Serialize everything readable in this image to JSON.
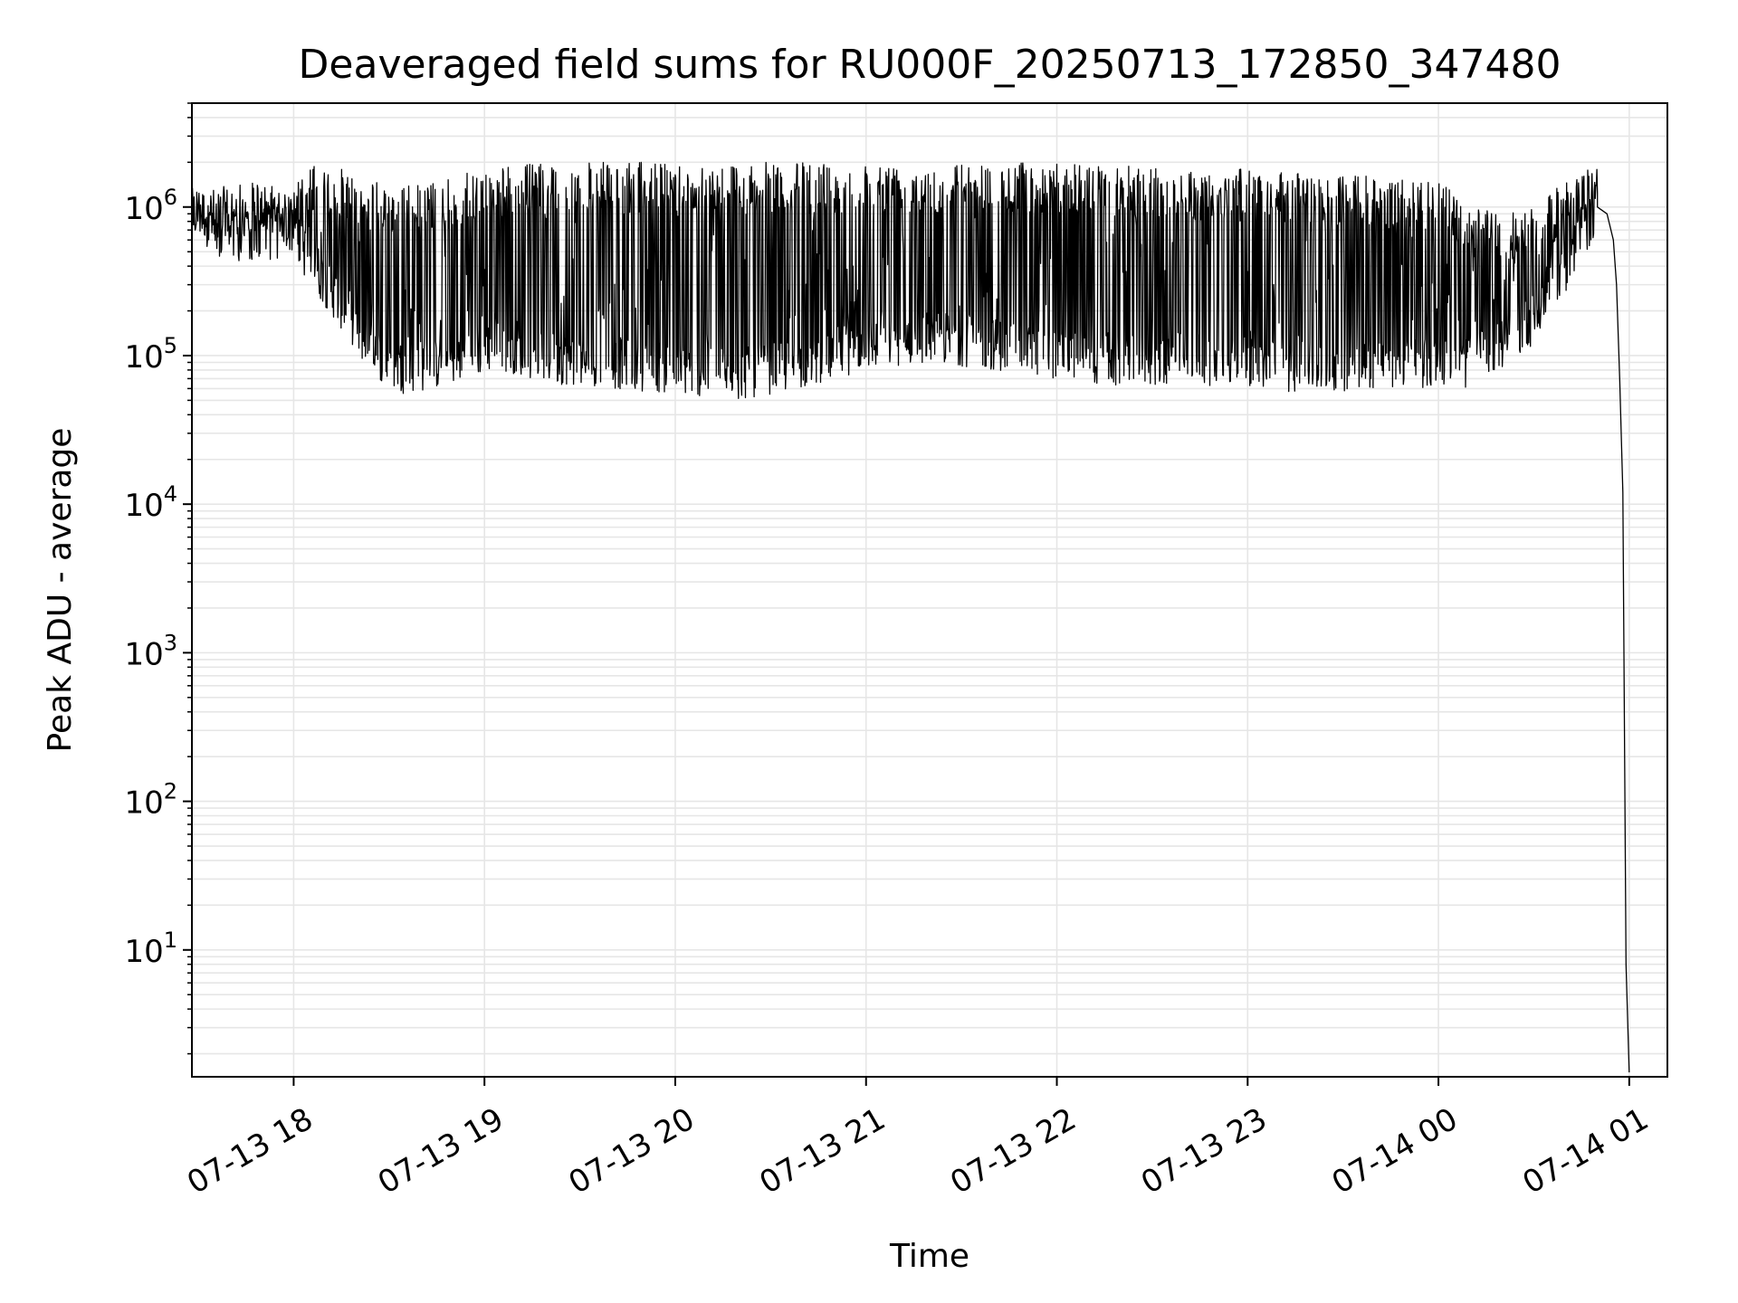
{
  "chart_data": {
    "type": "line",
    "title": "Deaveraged field sums for RU000F_20250713_172850_347480",
    "xlabel": "Time",
    "ylabel": "Peak ADU - average",
    "yscale": "log",
    "grid": true,
    "legend": "none",
    "line_color": "#000000",
    "grid_color": "#e6e6e6",
    "xlim": [
      "2025-07-13T17:28",
      "2025-07-14T01:12"
    ],
    "ylim": [
      1.4,
      5000000
    ],
    "x_ticks": [
      {
        "value": "2025-07-13T18:00",
        "label": "07-13 18"
      },
      {
        "value": "2025-07-13T19:00",
        "label": "07-13 19"
      },
      {
        "value": "2025-07-13T20:00",
        "label": "07-13 20"
      },
      {
        "value": "2025-07-13T21:00",
        "label": "07-13 21"
      },
      {
        "value": "2025-07-13T22:00",
        "label": "07-13 22"
      },
      {
        "value": "2025-07-13T23:00",
        "label": "07-13 23"
      },
      {
        "value": "2025-07-14T00:00",
        "label": "07-14 00"
      },
      {
        "value": "2025-07-14T01:00",
        "label": "07-14 01"
      }
    ],
    "y_ticks": [
      {
        "value": 10,
        "base": "10",
        "exp": "1"
      },
      {
        "value": 100,
        "base": "10",
        "exp": "2"
      },
      {
        "value": 1000,
        "base": "10",
        "exp": "3"
      },
      {
        "value": 10000,
        "base": "10",
        "exp": "4"
      },
      {
        "value": 100000,
        "base": "10",
        "exp": "5"
      },
      {
        "value": 1000000,
        "base": "10",
        "exp": "6"
      }
    ],
    "series": [
      {
        "envelope": {
          "x": [
            "2025-07-13T17:28",
            "2025-07-13T17:35",
            "2025-07-13T17:45",
            "2025-07-13T17:55",
            "2025-07-13T18:05",
            "2025-07-13T18:15",
            "2025-07-13T18:25",
            "2025-07-13T18:35",
            "2025-07-13T18:45",
            "2025-07-13T18:55",
            "2025-07-13T19:05",
            "2025-07-13T19:20",
            "2025-07-13T19:40",
            "2025-07-13T20:00",
            "2025-07-13T20:20",
            "2025-07-13T20:40",
            "2025-07-13T21:00",
            "2025-07-13T21:20",
            "2025-07-13T21:40",
            "2025-07-13T22:00",
            "2025-07-13T22:20",
            "2025-07-13T22:40",
            "2025-07-13T23:00",
            "2025-07-13T23:20",
            "2025-07-13T23:40",
            "2025-07-14T00:00",
            "2025-07-14T00:10",
            "2025-07-14T00:20",
            "2025-07-14T00:30",
            "2025-07-14T00:40",
            "2025-07-14T00:50"
          ],
          "lower": [
            600000,
            600000,
            650000,
            650000,
            300000,
            150000,
            70000,
            55000,
            60000,
            70000,
            80000,
            65000,
            60000,
            55000,
            50000,
            60000,
            80000,
            90000,
            80000,
            70000,
            60000,
            65000,
            60000,
            55000,
            60000,
            60000,
            60000,
            80000,
            120000,
            250000,
            700000
          ],
          "upper": [
            1600000,
            1000000,
            950000,
            1000000,
            1900000,
            1800000,
            1500000,
            1400000,
            1500000,
            1700000,
            1900000,
            2000000,
            2000000,
            2000000,
            2000000,
            2000000,
            2000000,
            2000000,
            2000000,
            2000000,
            1900000,
            1800000,
            1800000,
            1700000,
            1600000,
            1500000,
            1000000,
            900000,
            1000000,
            1500000,
            2200000
          ]
        },
        "tail": {
          "x": [
            "2025-07-14T00:50",
            "2025-07-14T00:53",
            "2025-07-14T00:55",
            "2025-07-14T00:56",
            "2025-07-14T00:57",
            "2025-07-14T00:58",
            "2025-07-14T00:59",
            "2025-07-14T01:00"
          ],
          "y": [
            1000000,
            900000,
            600000,
            300000,
            70000,
            12000,
            8,
            1.5
          ]
        }
      }
    ]
  }
}
